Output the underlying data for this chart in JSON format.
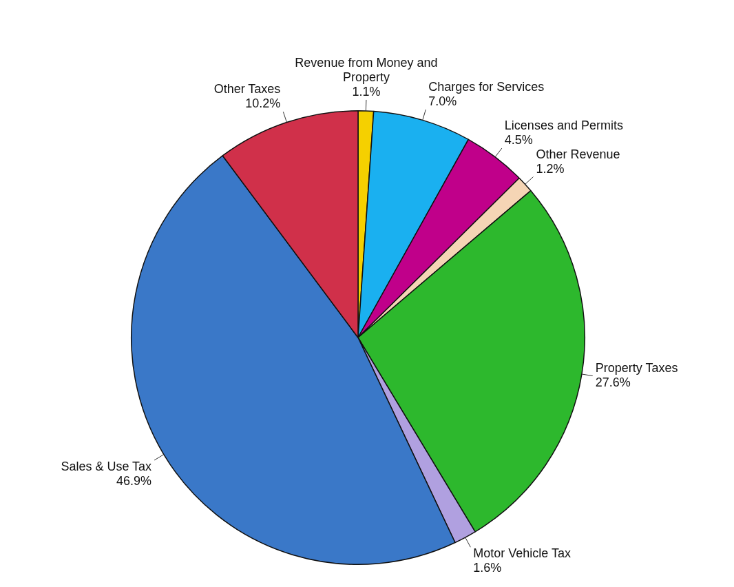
{
  "chart_data": {
    "type": "pie",
    "categories": [
      "Revenue from Money and Property",
      "Charges for Services",
      "Licenses and Permits",
      "Other Revenue",
      "Property Taxes",
      "Motor Vehicle Tax",
      "Sales & Use Tax",
      "Other Taxes"
    ],
    "values": [
      1.1,
      7.0,
      4.5,
      1.2,
      27.6,
      1.6,
      46.9,
      10.2
    ],
    "value_labels": [
      "1.1%",
      "7.0%",
      "4.5%",
      "1.2%",
      "27.6%",
      "1.6%",
      "46.9%",
      "10.2%"
    ],
    "colors": [
      "#f5d000",
      "#1ab0f0",
      "#c0008a",
      "#f5d5b5",
      "#2db82d",
      "#b0a0e0",
      "#3a78c8",
      "#d0304a"
    ],
    "legend": false
  }
}
